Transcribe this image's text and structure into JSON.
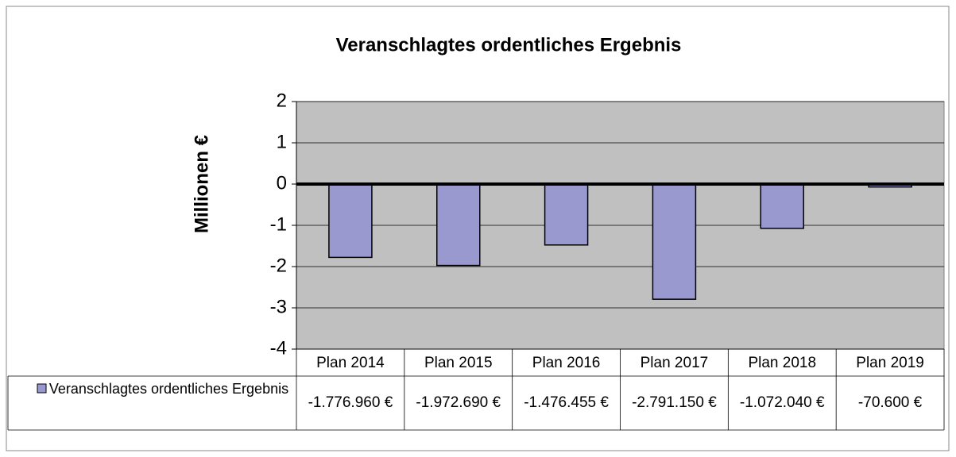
{
  "chart_data": {
    "type": "bar",
    "title": "Veranschlagtes ordentliches Ergebnis",
    "ylabel": "Millionen €",
    "categories": [
      "Plan 2014",
      "Plan 2015",
      "Plan 2016",
      "Plan 2017",
      "Plan 2018",
      "Plan 2019"
    ],
    "series": [
      {
        "name": "Veranschlagtes ordentliches Ergebnis",
        "color": "#9999d0",
        "values": [
          -1.77696,
          -1.97269,
          -1.476455,
          -2.79115,
          -1.07204,
          -0.0706
        ],
        "value_labels": [
          "-1.776.960 €",
          "-1.972.690 €",
          "-1.476.455 €",
          "-2.791.150 €",
          "-1.072.040 €",
          "-70.600 €"
        ]
      }
    ],
    "ylim": [
      -4,
      2
    ],
    "yticks": [
      2,
      1,
      0,
      -1,
      -2,
      -3,
      -4
    ],
    "grid": true,
    "plot_background": "#c0c0c0"
  }
}
